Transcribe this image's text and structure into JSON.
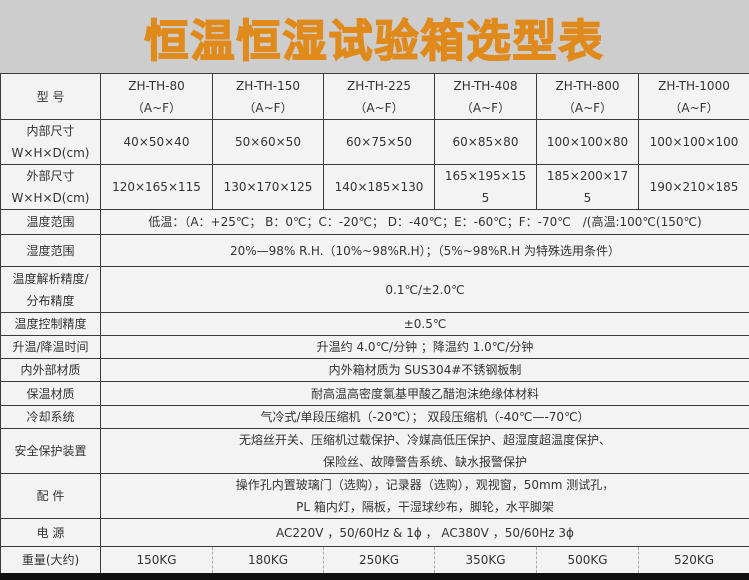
{
  "title": "恒温恒湿试验箱选型表",
  "header": {
    "label": "型 号",
    "models": [
      [
        "ZH-TH-80",
        "（A~F）"
      ],
      [
        "ZH-TH-150",
        "（A~F）"
      ],
      [
        "ZH-TH-225",
        "（A~F）"
      ],
      [
        "ZH-TH-408",
        "（A~F）"
      ],
      [
        "ZH-TH-800",
        "（A~F）"
      ],
      [
        "ZH-TH-1000",
        "（A~F）"
      ]
    ]
  },
  "inner": {
    "label": [
      "内部尺寸",
      "W×H×D(cm)"
    ],
    "values": [
      "40×50×40",
      "50×60×50",
      "60×75×50",
      "60×85×80",
      "100×100×80",
      "100×100×100"
    ]
  },
  "outer": {
    "label": [
      "外部尺寸",
      "W×H×D(cm)"
    ],
    "values": [
      "120×165×115",
      "130×170×125",
      "140×185×130",
      "165×195×155",
      "185×200×175",
      "190×210×185"
    ]
  },
  "rows": [
    {
      "label": [
        "温度范围"
      ],
      "value": [
        "低温：（A：+25℃； B：0℃；C：-20℃； D：-40℃；E：-60℃；F：-70℃　/(高温:100℃(150℃)"
      ]
    },
    {
      "label": [
        "湿度范围"
      ],
      "value": [
        "20%—98% R.H.（10%~98%R.H）；（5%~98%R.H 为特殊选用条件）"
      ]
    },
    {
      "label": [
        "温度解析精度/",
        "分布精度"
      ],
      "value": [
        "0.1℃/±2.0℃"
      ]
    },
    {
      "label": [
        "温度控制精度"
      ],
      "value": [
        "±0.5℃"
      ]
    },
    {
      "label": [
        "升温/降温时间"
      ],
      "value": [
        "升温约 4.0℃/分钟 ；降温约 1.0℃/分钟"
      ]
    },
    {
      "label": [
        "内外部材质"
      ],
      "value": [
        "内外箱材质为 SUS304#不锈钢板制"
      ]
    },
    {
      "label": [
        "保温材质"
      ],
      "value": [
        "耐高温高密度氯基甲酸乙醋泡沫绝缘体材料"
      ]
    },
    {
      "label": [
        "冷却系统"
      ],
      "value": [
        "气冷式/单段压缩机（-20℃）； 双段压缩机（-40℃—-70℃）"
      ]
    },
    {
      "label": [
        "安全保护装置"
      ],
      "value": [
        "无熔丝开关、压缩机过载保护、冷媒高低压保护、超湿度超温度保护、",
        "保险丝、故障警告系统、缺水报警保护"
      ]
    },
    {
      "label": [
        "配 件"
      ],
      "value": [
        "操作孔内置玻璃门（选购），记录器（选购），观视窗，50mm 测试孔，",
        "PL 箱内灯，隔板，干湿球纱布，脚轮，水平脚架"
      ]
    },
    {
      "label": [
        "电 源"
      ],
      "value": [
        "AC220V ，50/60Hz & 1ϕ ， AC380V ，50/60Hz 3ϕ"
      ]
    }
  ],
  "weight": {
    "label": "重量(大约)",
    "values": [
      "150KG",
      "180KG",
      "250KG",
      "350KG",
      "500KG",
      "520KG"
    ]
  }
}
